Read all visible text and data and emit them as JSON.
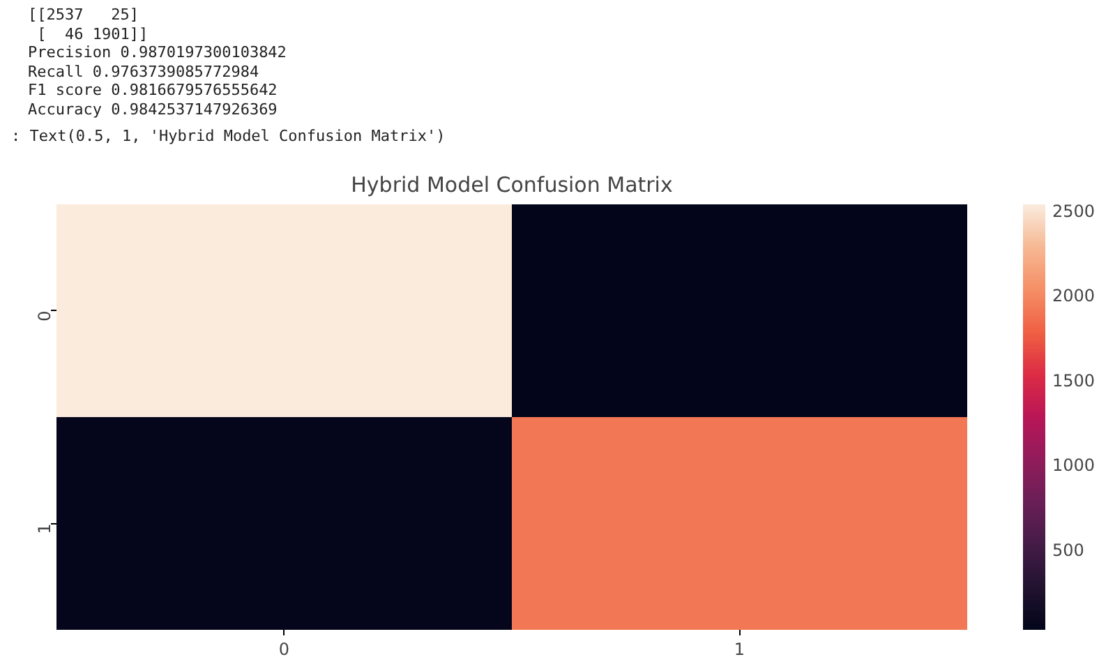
{
  "chart_data": {
    "type": "heatmap",
    "title": "Hybrid Model Confusion Matrix",
    "annotations": [
      "[[2537   25]",
      " [  46 1901]]",
      "Precision 0.9870197300103842",
      "Recall 0.9763739085772984",
      "F1 score 0.9816679576555642",
      "Accuracy 0.9842537147926369",
      ": Text(0.5, 1, 'Hybrid Model Confusion Matrix')"
    ],
    "categories": [
      "0",
      "1"
    ],
    "y_categories": [
      "0",
      "1"
    ],
    "cells": [
      [
        2537,
        25
      ],
      [
        46,
        1901
      ]
    ],
    "clim": [
      25,
      2537
    ],
    "cticks": [
      500,
      1000,
      1500,
      2000,
      2500
    ]
  }
}
